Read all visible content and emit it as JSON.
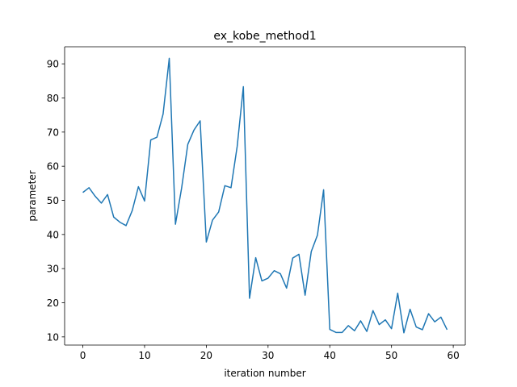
{
  "chart_data": {
    "type": "line",
    "title": "ex_kobe_method1",
    "xlabel": "iteration number",
    "ylabel": "parameter",
    "xlim": [
      -2.95,
      61.95
    ],
    "ylim": [
      7.6,
      95.0
    ],
    "xticks": [
      0,
      10,
      20,
      30,
      40,
      50,
      60
    ],
    "yticks": [
      10,
      20,
      30,
      40,
      50,
      60,
      70,
      80,
      90
    ],
    "grid": false,
    "legend": "none",
    "series": [
      {
        "color": "#1f77b4",
        "x": [
          0,
          1,
          2,
          3,
          4,
          5,
          6,
          7,
          8,
          9,
          10,
          11,
          12,
          13,
          14,
          15,
          16,
          17,
          18,
          19,
          20,
          21,
          22,
          23,
          24,
          25,
          26,
          27,
          28,
          29,
          30,
          31,
          32,
          33,
          34,
          35,
          36,
          37,
          38,
          39,
          40,
          41,
          42,
          43,
          44,
          45,
          46,
          47,
          48,
          49,
          50,
          51,
          52,
          53,
          54,
          55,
          56,
          57,
          58,
          59
        ],
        "values": [
          52.3,
          53.7,
          51.2,
          49.2,
          51.7,
          45.1,
          43.6,
          42.6,
          47.0,
          54.0,
          49.8,
          67.7,
          68.5,
          75.3,
          91.6,
          43.0,
          53.6,
          66.4,
          70.6,
          73.3,
          37.8,
          44.2,
          46.6,
          54.3,
          53.7,
          65.8,
          83.3,
          21.3,
          33.2,
          26.4,
          27.2,
          29.4,
          28.5,
          24.3,
          33.1,
          34.2,
          22.2,
          35.0,
          39.8,
          53.1,
          12.2,
          11.3,
          11.3,
          13.3,
          11.8,
          14.7,
          11.6,
          17.7,
          13.6,
          15.0,
          12.4,
          22.8,
          11.2,
          18.1,
          12.9,
          12.1,
          16.8,
          14.4,
          15.8,
          12.1
        ]
      }
    ]
  }
}
